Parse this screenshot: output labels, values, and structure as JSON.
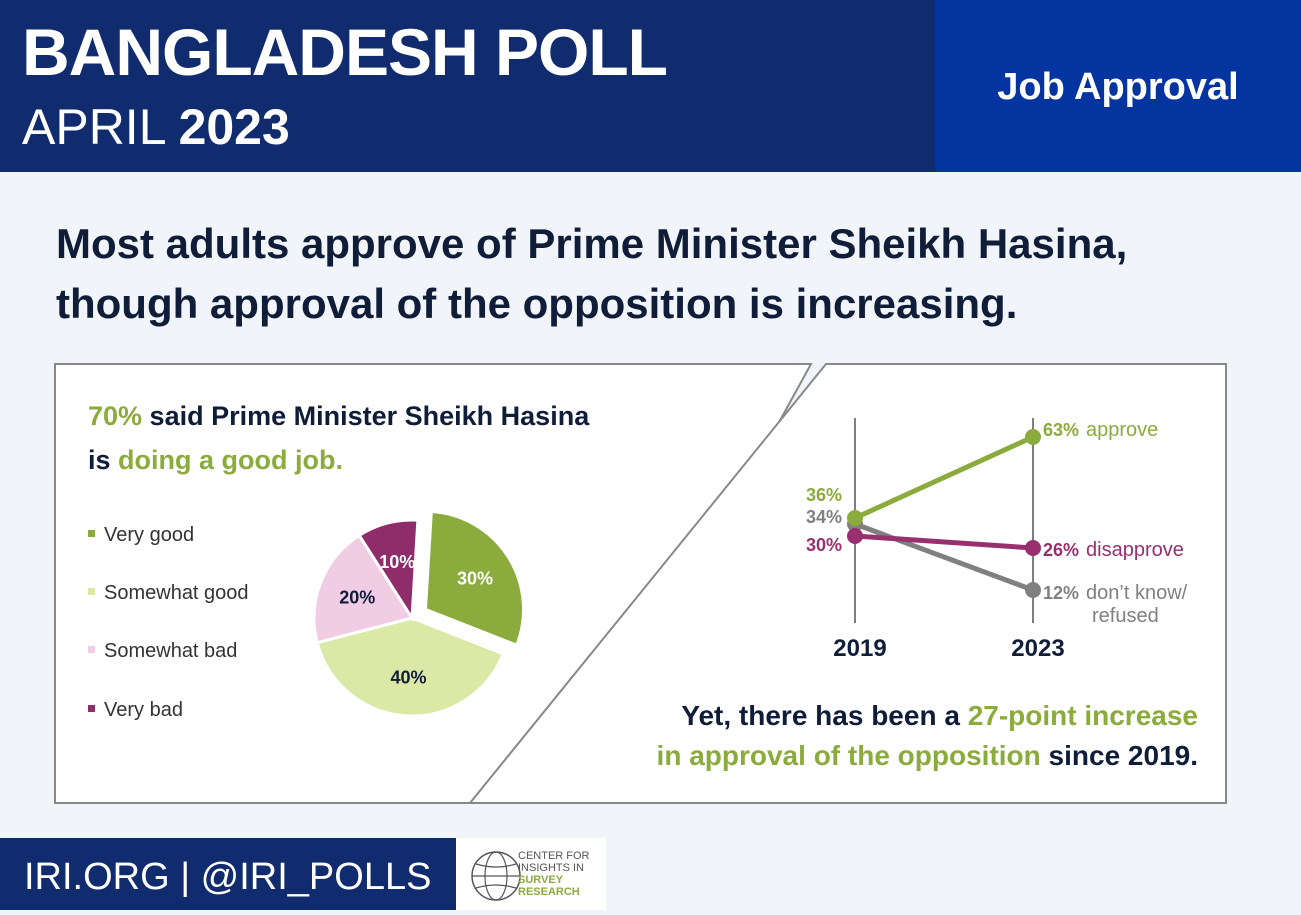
{
  "header": {
    "title": "BANGLADESH POLL",
    "date_month": "APRIL",
    "date_year": "2023",
    "topic": "Job Approval"
  },
  "headline": {
    "line1": "Most adults approve of Prime Minister Sheikh Hasina,",
    "line2": "though approval of the opposition is increasing."
  },
  "left_panel": {
    "stat": "70%",
    "text1": " said Prime Minister Sheikh Hasina",
    "text2": "is ",
    "highlight": "doing a good job."
  },
  "right_panel": {
    "text1": "Yet, there has been a ",
    "highlight1": "27-point increase",
    "highlight2": "in approval of the opposition",
    "text2": " since 2019."
  },
  "footer": {
    "text": "IRI.ORG | @IRI_POLLS",
    "logo_line1": "CENTER FOR",
    "logo_line2": "INSIGHTS IN",
    "logo_line3": "SURVEY",
    "logo_line4": "RESEARCH"
  },
  "colors": {
    "very_good": "#8bab3c",
    "somewhat_good": "#dbe8a6",
    "somewhat_bad": "#f0cde4",
    "very_bad": "#8f2d6b",
    "approve": "#8bab3c",
    "disapprove": "#98306f",
    "dont_know": "#808080"
  },
  "chart_data": [
    {
      "type": "pie",
      "categories": [
        "Very good",
        "Somewhat good",
        "Somewhat bad",
        "Very bad"
      ],
      "values": [
        30,
        40,
        20,
        10
      ],
      "labels": [
        "30%",
        "40%",
        "20%",
        "10%"
      ],
      "exploded": "Very good"
    },
    {
      "type": "line",
      "x": [
        "2019",
        "2023"
      ],
      "series": [
        {
          "name": "approve",
          "values": [
            36,
            63
          ],
          "labels": [
            "36%",
            "63%"
          ]
        },
        {
          "name": "disapprove",
          "values": [
            30,
            26
          ],
          "labels": [
            "30%",
            "26%"
          ]
        },
        {
          "name": "don’t know/ refused",
          "name_line1": "don’t know/",
          "name_line2": "refused",
          "values": [
            34,
            12
          ],
          "labels": [
            "34%",
            "12%"
          ]
        }
      ]
    }
  ]
}
